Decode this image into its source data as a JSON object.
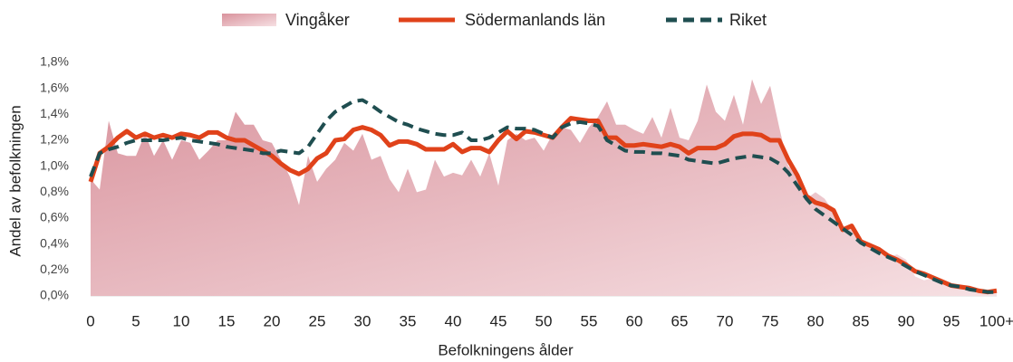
{
  "chart_data": {
    "type": "line",
    "x_label": "Befolkningens ålder",
    "y_label": "Andel av befolkningen",
    "categories": [
      "0",
      null,
      null,
      null,
      null,
      "5",
      null,
      null,
      null,
      null,
      "10",
      null,
      null,
      null,
      null,
      "15",
      null,
      null,
      null,
      null,
      "20",
      null,
      null,
      null,
      null,
      "25",
      null,
      null,
      null,
      null,
      "30",
      null,
      null,
      null,
      null,
      "35",
      null,
      null,
      null,
      null,
      "40",
      null,
      null,
      null,
      null,
      "45",
      null,
      null,
      null,
      null,
      "50",
      null,
      null,
      null,
      null,
      "55",
      null,
      null,
      null,
      null,
      "60",
      null,
      null,
      null,
      null,
      "65",
      null,
      null,
      null,
      null,
      "70",
      null,
      null,
      null,
      null,
      "75",
      null,
      null,
      null,
      null,
      "80",
      null,
      null,
      null,
      null,
      "85",
      null,
      null,
      null,
      null,
      "90",
      null,
      null,
      null,
      null,
      "95",
      null,
      null,
      null,
      null,
      "100+"
    ],
    "ylim": [
      0,
      1.8
    ],
    "yticks": [
      {
        "value": 0,
        "label": "0,0%"
      },
      {
        "value": 0.2,
        "label": "0,2%"
      },
      {
        "value": 0.4,
        "label": "0,4%"
      },
      {
        "value": 0.6,
        "label": "0,6%"
      },
      {
        "value": 0.8,
        "label": "0,8%"
      },
      {
        "value": 1.0,
        "label": "1,0%"
      },
      {
        "value": 1.2,
        "label": "1,2%"
      },
      {
        "value": 1.4,
        "label": "1,4%"
      },
      {
        "value": 1.6,
        "label": "1,6%"
      },
      {
        "value": 1.8,
        "label": "1,8%"
      }
    ],
    "series": [
      {
        "name": "Vingåker",
        "kind": "area",
        "color": "#d9939d",
        "values": [
          0.9,
          0.82,
          1.35,
          1.1,
          1.08,
          1.08,
          1.25,
          1.08,
          1.2,
          1.05,
          1.2,
          1.18,
          1.05,
          1.12,
          1.2,
          1.2,
          1.42,
          1.32,
          1.32,
          1.2,
          1.18,
          1.05,
          0.92,
          0.7,
          1.08,
          0.88,
          0.98,
          1.05,
          1.18,
          1.12,
          1.25,
          1.05,
          1.08,
          0.9,
          0.8,
          0.98,
          0.8,
          0.82,
          1.05,
          0.92,
          0.95,
          0.93,
          1.05,
          0.92,
          1.1,
          0.85,
          1.2,
          1.25,
          1.2,
          1.22,
          1.12,
          1.25,
          1.3,
          1.28,
          1.18,
          1.3,
          1.38,
          1.5,
          1.32,
          1.32,
          1.28,
          1.25,
          1.38,
          1.22,
          1.45,
          1.22,
          1.2,
          1.35,
          1.63,
          1.42,
          1.35,
          1.55,
          1.32,
          1.67,
          1.48,
          1.62,
          1.3,
          1.0,
          0.95,
          0.75,
          0.8,
          0.75,
          0.65,
          0.5,
          0.52,
          0.4,
          0.38,
          0.33,
          0.3,
          0.32,
          0.28,
          0.15,
          0.12,
          0.14,
          0.1,
          0.08,
          0.06,
          0.05,
          0.03,
          0.02,
          0.03
        ]
      },
      {
        "name": "Södermanlands län",
        "kind": "line",
        "color": "#e0421a",
        "values": [
          0.88,
          1.1,
          1.15,
          1.22,
          1.27,
          1.22,
          1.25,
          1.22,
          1.24,
          1.22,
          1.25,
          1.24,
          1.22,
          1.26,
          1.26,
          1.22,
          1.2,
          1.2,
          1.16,
          1.12,
          1.08,
          1.02,
          0.97,
          0.94,
          0.98,
          1.06,
          1.1,
          1.2,
          1.21,
          1.28,
          1.3,
          1.28,
          1.24,
          1.16,
          1.19,
          1.19,
          1.17,
          1.13,
          1.13,
          1.13,
          1.17,
          1.11,
          1.14,
          1.14,
          1.11,
          1.2,
          1.27,
          1.21,
          1.27,
          1.26,
          1.24,
          1.22,
          1.3,
          1.37,
          1.36,
          1.35,
          1.35,
          1.22,
          1.22,
          1.16,
          1.16,
          1.17,
          1.16,
          1.15,
          1.17,
          1.15,
          1.1,
          1.14,
          1.14,
          1.14,
          1.17,
          1.23,
          1.25,
          1.25,
          1.24,
          1.2,
          1.2,
          1.05,
          0.93,
          0.77,
          0.72,
          0.7,
          0.66,
          0.51,
          0.54,
          0.42,
          0.39,
          0.36,
          0.31,
          0.28,
          0.24,
          0.19,
          0.17,
          0.14,
          0.11,
          0.08,
          0.07,
          0.06,
          0.04,
          0.03,
          0.04
        ]
      },
      {
        "name": "Riket",
        "kind": "dashed",
        "color": "#1f4e50",
        "values": [
          0.92,
          1.1,
          1.13,
          1.15,
          1.18,
          1.2,
          1.2,
          1.2,
          1.2,
          1.21,
          1.22,
          1.2,
          1.19,
          1.18,
          1.17,
          1.15,
          1.14,
          1.13,
          1.12,
          1.1,
          1.1,
          1.12,
          1.11,
          1.1,
          1.15,
          1.25,
          1.35,
          1.42,
          1.46,
          1.5,
          1.51,
          1.47,
          1.42,
          1.38,
          1.34,
          1.32,
          1.29,
          1.27,
          1.25,
          1.24,
          1.24,
          1.26,
          1.2,
          1.2,
          1.22,
          1.26,
          1.3,
          1.29,
          1.29,
          1.28,
          1.25,
          1.22,
          1.3,
          1.33,
          1.34,
          1.33,
          1.31,
          1.2,
          1.16,
          1.12,
          1.11,
          1.11,
          1.1,
          1.1,
          1.09,
          1.08,
          1.05,
          1.04,
          1.03,
          1.02,
          1.04,
          1.06,
          1.07,
          1.08,
          1.07,
          1.06,
          1.02,
          0.95,
          0.85,
          0.75,
          0.67,
          0.62,
          0.57,
          0.52,
          0.47,
          0.41,
          0.37,
          0.33,
          0.3,
          0.27,
          0.23,
          0.19,
          0.16,
          0.13,
          0.1,
          0.08,
          0.07,
          0.05,
          0.04,
          0.03,
          0.03
        ]
      }
    ]
  }
}
